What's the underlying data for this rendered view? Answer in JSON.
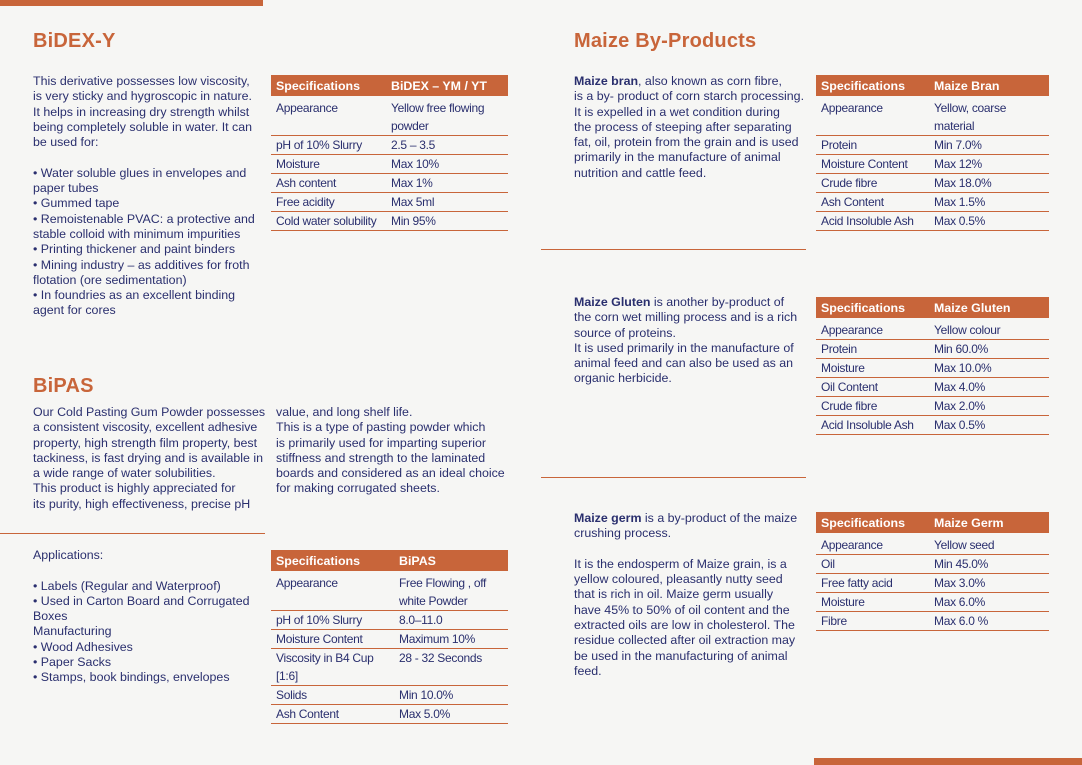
{
  "bidex": {
    "title": "BiDEX-Y",
    "intro": [
      "This derivative possesses low viscosity,",
      "is very sticky and hygroscopic in nature.",
      "It helps in increasing dry strength whilst",
      "being completely soluble in water. It can",
      "be used for:"
    ],
    "uses": [
      "• Water soluble glues in envelopes and",
      "paper tubes",
      "• Gummed tape",
      "• Remoistenable PVAC: a protective and",
      "stable colloid with minimum impurities",
      "• Printing thickener and paint binders",
      "• Mining industry – as additives for froth",
      "flotation (ore sedimentation)",
      "• In foundries as an excellent binding",
      "agent for cores"
    ],
    "table": {
      "headers": [
        "Specifications",
        "BiDEX – YM / YT"
      ],
      "rows": [
        [
          "Appearance",
          "Yellow free flowing powder"
        ],
        [
          "pH of 10% Slurry",
          "2.5 – 3.5"
        ],
        [
          "Moisture",
          "Max 10%"
        ],
        [
          "Ash content",
          "Max 1%"
        ],
        [
          "Free acidity",
          "Max 5ml"
        ],
        [
          "Cold water solubility",
          "Min 95%"
        ]
      ]
    }
  },
  "bipas": {
    "title": "BiPAS",
    "col1": [
      "Our Cold Pasting Gum Powder possesses",
      "a consistent viscosity, excellent adhesive",
      "property, high strength film property, best",
      "tackiness, is fast drying and is available in",
      "a wide range of water solubilities.",
      "This product is highly appreciated for",
      "its purity, high effectiveness, precise pH"
    ],
    "col2": [
      "value, and long shelf life.",
      "This is a type of pasting powder which",
      "is primarily used for imparting superior",
      "stiffness and strength to the laminated",
      "boards and considered as an ideal choice",
      "for making corrugated sheets."
    ],
    "applications": [
      "Applications:",
      "",
      "• Labels (Regular and Waterproof)",
      "• Used in Carton Board and Corrugated",
      "Boxes",
      "Manufacturing",
      "• Wood Adhesives",
      "• Paper Sacks",
      "• Stamps, book bindings, envelopes"
    ],
    "table": {
      "headers": [
        "Specifications",
        "BiPAS"
      ],
      "rows": [
        [
          "Appearance",
          "Free Flowing , off white Powder"
        ],
        [
          "pH of 10% Slurry",
          "8.0–11.0"
        ],
        [
          "Moisture Content",
          "Maximum 10%"
        ],
        [
          "Viscosity in B4 Cup [1:6]",
          "28 - 32 Seconds"
        ],
        [
          "Solids",
          "Min 10.0%"
        ],
        [
          "Ash Content",
          "Max 5.0%"
        ]
      ]
    }
  },
  "maize": {
    "title": "Maize By-Products",
    "bran": {
      "name": "Maize bran",
      "lines": [
        ", also known as corn fibre,",
        "is a by- product of corn starch processing.",
        "It is expelled in a wet condition during",
        "the process of steeping after separating",
        "fat, oil, protein from the grain and is used",
        "primarily in the manufacture of animal",
        "nutrition and cattle feed."
      ],
      "table": {
        "headers": [
          "Specifications",
          "Maize Bran"
        ],
        "rows": [
          [
            "Appearance",
            "Yellow, coarse material"
          ],
          [
            "Protein",
            "Min 7.0%"
          ],
          [
            "Moisture Content",
            "Max 12%"
          ],
          [
            "Crude fibre",
            "Max 18.0%"
          ],
          [
            "Ash Content",
            "Max 1.5%"
          ],
          [
            "Acid Insoluble Ash",
            "Max 0.5%"
          ]
        ]
      }
    },
    "gluten": {
      "name": "Maize Gluten",
      "lines": [
        " is another by-product of",
        "the corn wet milling process and is a rich",
        "source of proteins.",
        "It is used primarily in the manufacture of",
        "animal feed and can also be used as an",
        "organic herbicide."
      ],
      "table": {
        "headers": [
          "Specifications",
          "Maize Gluten"
        ],
        "rows": [
          [
            "Appearance",
            "Yellow colour"
          ],
          [
            "Protein",
            "Min 60.0%"
          ],
          [
            "Moisture",
            "Max 10.0%"
          ],
          [
            "Oil Content",
            "Max 4.0%"
          ],
          [
            "Crude fibre",
            "Max 2.0%"
          ],
          [
            "Acid Insoluble Ash",
            "Max 0.5%"
          ]
        ]
      }
    },
    "germ": {
      "name": "Maize germ",
      "lines": [
        " is a by-product of the maize",
        "crushing process.",
        "",
        "It is the endosperm of Maize grain, is a",
        "yellow coloured, pleasantly nutty seed",
        "that is rich in oil. Maize germ usually",
        "have 45% to 50% of oil content and the",
        "extracted oils are low in cholesterol. The",
        "residue collected after oil extraction may",
        "be used in the manufacturing of animal",
        "feed."
      ],
      "table": {
        "headers": [
          "Specifications",
          "Maize Germ"
        ],
        "rows": [
          [
            "Appearance",
            "Yellow seed"
          ],
          [
            "Oil",
            "Min 45.0%"
          ],
          [
            "Free fatty acid",
            "Max 3.0%"
          ],
          [
            "Moisture",
            "Max 6.0%"
          ],
          [
            "Fibre",
            "Max 6.0 %"
          ]
        ]
      }
    }
  },
  "colors": {
    "accent": "#c8653a",
    "text": "#2a2f6e",
    "background": "#f6f6f4"
  }
}
